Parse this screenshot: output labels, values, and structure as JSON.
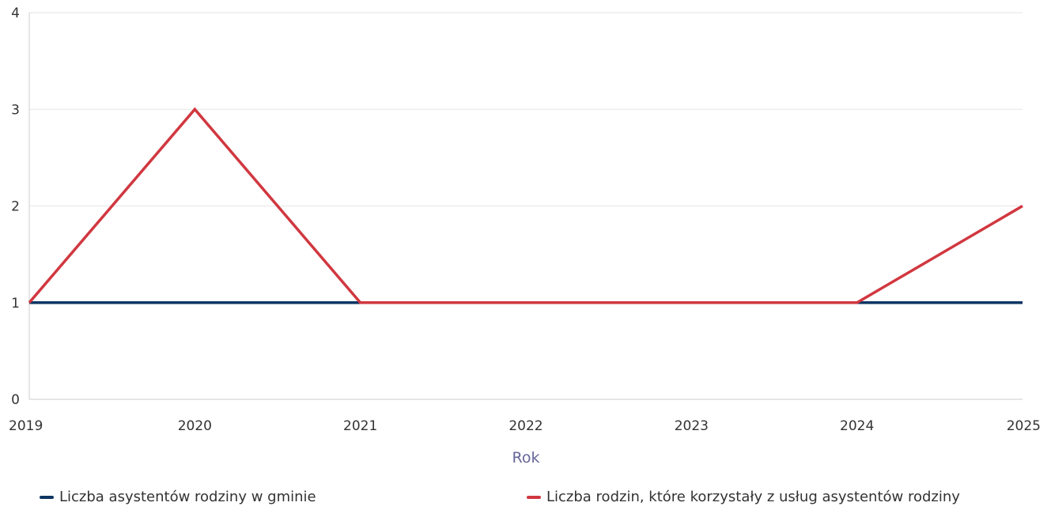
{
  "chart_data": {
    "type": "line",
    "x": [
      2019,
      2020,
      2021,
      2022,
      2023,
      2024,
      2025
    ],
    "xlabel": "Rok",
    "ylabel": "",
    "ylim": [
      0,
      4
    ],
    "yticks": [
      0,
      1,
      2,
      3,
      4
    ],
    "grid": true,
    "legend_position": "bottom",
    "series": [
      {
        "name": "Liczba asystentów rodziny w gminie",
        "color": "#0d3562",
        "values": [
          1,
          1,
          1,
          1,
          1,
          1,
          1
        ]
      },
      {
        "name": "Liczba rodzin, które korzystały z usług asystentów rodziny",
        "color": "#d1373f",
        "values": [
          1,
          3,
          1,
          1,
          1,
          1,
          2
        ]
      }
    ]
  }
}
